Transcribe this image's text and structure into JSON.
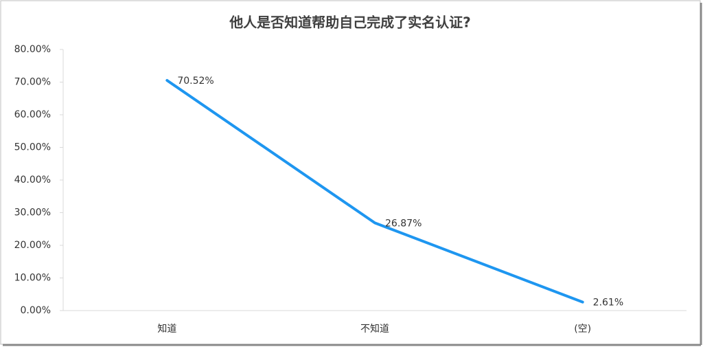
{
  "chart_data": {
    "type": "line",
    "title": "他人是否知道帮助自己完成了实名认证?",
    "categories": [
      "知道",
      "不知道",
      "(空)"
    ],
    "values": [
      70.52,
      26.87,
      2.61
    ],
    "value_labels": [
      "70.52%",
      "26.87%",
      "2.61%"
    ],
    "color": "#1e96f0",
    "ylim": [
      0,
      80
    ],
    "yticks": [
      {
        "value": 0,
        "label": "0.00%"
      },
      {
        "value": 10,
        "label": "10.00%"
      },
      {
        "value": 20,
        "label": "20.00%"
      },
      {
        "value": 30,
        "label": "30.00%"
      },
      {
        "value": 40,
        "label": "40.00%"
      },
      {
        "value": 50,
        "label": "50.00%"
      },
      {
        "value": 60,
        "label": "60.00%"
      },
      {
        "value": 70,
        "label": "70.00%"
      },
      {
        "value": 80,
        "label": "80.00%"
      }
    ],
    "grid": false
  }
}
